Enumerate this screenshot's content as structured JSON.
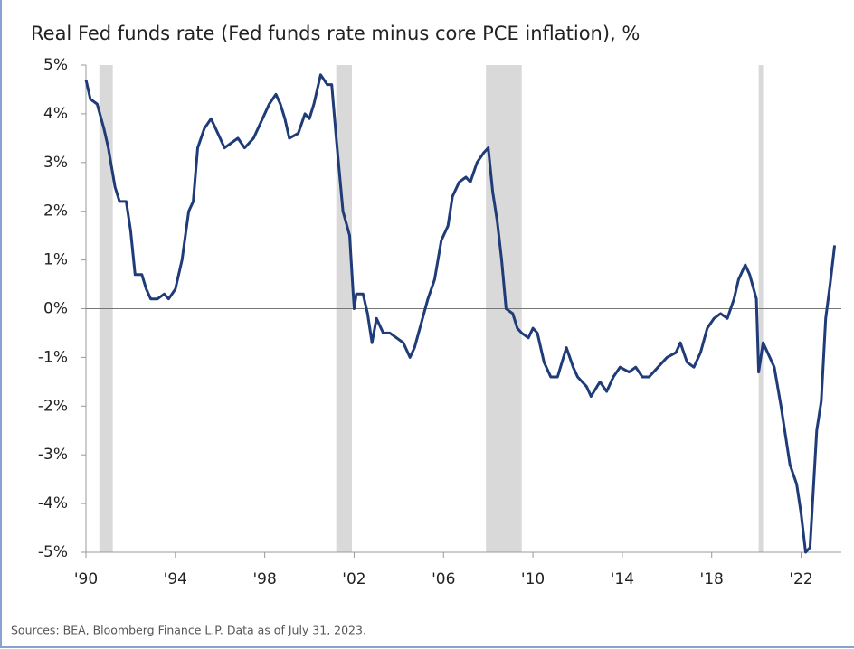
{
  "chart_data": {
    "type": "line",
    "title": "Real Fed funds rate (Fed funds rate minus core PCE inflation), %",
    "source": "Sources: BEA, Bloomberg Finance L.P. Data as of July 31, 2023.",
    "xlim": [
      1990,
      2023.8
    ],
    "ylim": [
      -5,
      5
    ],
    "xticks": [
      {
        "value": 1990,
        "label": "'90"
      },
      {
        "value": 1994,
        "label": "'94"
      },
      {
        "value": 1998,
        "label": "'98"
      },
      {
        "value": 2002,
        "label": "'02"
      },
      {
        "value": 2006,
        "label": "'06"
      },
      {
        "value": 2010,
        "label": "'10"
      },
      {
        "value": 2014,
        "label": "'14"
      },
      {
        "value": 2018,
        "label": "'18"
      },
      {
        "value": 2022,
        "label": "'22"
      }
    ],
    "yticks": [
      {
        "value": 5,
        "label": "5%"
      },
      {
        "value": 4,
        "label": "4%"
      },
      {
        "value": 3,
        "label": "3%"
      },
      {
        "value": 2,
        "label": "2%"
      },
      {
        "value": 1,
        "label": "1%"
      },
      {
        "value": 0,
        "label": "0%"
      },
      {
        "value": -1,
        "label": "-1%"
      },
      {
        "value": -2,
        "label": "-2%"
      },
      {
        "value": -3,
        "label": "-3%"
      },
      {
        "value": -4,
        "label": "-4%"
      },
      {
        "value": -5,
        "label": "-5%"
      }
    ],
    "shaded_regions": [
      [
        1990.6,
        1991.2
      ],
      [
        2001.2,
        2001.9
      ],
      [
        2007.9,
        2009.5
      ],
      [
        2020.1,
        2020.3
      ]
    ],
    "shade_color": "#d9d9d9",
    "series": [
      {
        "color": "#1f3b78",
        "x": [
          1990.0,
          1990.2,
          1990.5,
          1990.8,
          1991.0,
          1991.3,
          1991.5,
          1991.8,
          1992.0,
          1992.2,
          1992.5,
          1992.7,
          1992.9,
          1993.2,
          1993.5,
          1993.7,
          1994.0,
          1994.3,
          1994.6,
          1994.8,
          1995.0,
          1995.3,
          1995.6,
          1995.9,
          1996.2,
          1996.5,
          1996.8,
          1997.1,
          1997.5,
          1997.9,
          1998.2,
          1998.5,
          1998.7,
          1998.9,
          1999.1,
          1999.5,
          1999.8,
          2000.0,
          2000.2,
          2000.5,
          2000.8,
          2001.0,
          2001.2,
          2001.5,
          2001.8,
          2002.0,
          2002.1,
          2002.4,
          2002.6,
          2002.8,
          2003.0,
          2003.3,
          2003.6,
          2003.9,
          2004.2,
          2004.5,
          2004.7,
          2005.0,
          2005.3,
          2005.6,
          2005.9,
          2006.2,
          2006.4,
          2006.7,
          2007.0,
          2007.2,
          2007.5,
          2007.8,
          2008.0,
          2008.2,
          2008.4,
          2008.6,
          2008.8,
          2009.1,
          2009.3,
          2009.5,
          2009.8,
          2010.0,
          2010.2,
          2010.5,
          2010.8,
          2011.1,
          2011.5,
          2011.8,
          2012.0,
          2012.4,
          2012.6,
          2013.0,
          2013.3,
          2013.6,
          2013.9,
          2014.3,
          2014.6,
          2014.9,
          2015.2,
          2015.6,
          2016.0,
          2016.4,
          2016.6,
          2016.9,
          2017.2,
          2017.5,
          2017.8,
          2018.1,
          2018.4,
          2018.7,
          2019.0,
          2019.2,
          2019.5,
          2019.7,
          2020.0,
          2020.1,
          2020.3,
          2020.5,
          2020.8,
          2021.1,
          2021.5,
          2021.8,
          2022.0,
          2022.2,
          2022.4,
          2022.7,
          2022.9,
          2023.1,
          2023.3,
          2023.5
        ],
        "values": [
          4.7,
          4.3,
          4.2,
          3.7,
          3.3,
          2.5,
          2.2,
          2.2,
          1.6,
          0.7,
          0.7,
          0.4,
          0.2,
          0.2,
          0.3,
          0.2,
          0.4,
          1.0,
          2.0,
          2.2,
          3.3,
          3.7,
          3.9,
          3.6,
          3.3,
          3.4,
          3.5,
          3.3,
          3.5,
          3.9,
          4.2,
          4.4,
          4.2,
          3.9,
          3.5,
          3.6,
          4.0,
          3.9,
          4.2,
          4.8,
          4.6,
          4.6,
          3.5,
          2.0,
          1.5,
          0.0,
          0.3,
          0.3,
          -0.1,
          -0.7,
          -0.2,
          -0.5,
          -0.5,
          -0.6,
          -0.7,
          -1.0,
          -0.8,
          -0.3,
          0.2,
          0.6,
          1.4,
          1.7,
          2.3,
          2.6,
          2.7,
          2.6,
          3.0,
          3.2,
          3.3,
          2.4,
          1.8,
          1.0,
          0.0,
          -0.1,
          -0.4,
          -0.5,
          -0.6,
          -0.4,
          -0.5,
          -1.1,
          -1.4,
          -1.4,
          -0.8,
          -1.2,
          -1.4,
          -1.6,
          -1.8,
          -1.5,
          -1.7,
          -1.4,
          -1.2,
          -1.3,
          -1.2,
          -1.4,
          -1.4,
          -1.2,
          -1.0,
          -0.9,
          -0.7,
          -1.1,
          -1.2,
          -0.9,
          -0.4,
          -0.2,
          -0.1,
          -0.2,
          0.2,
          0.6,
          0.9,
          0.7,
          0.2,
          -1.3,
          -0.7,
          -0.9,
          -1.2,
          -2.0,
          -3.2,
          -3.6,
          -4.2,
          -5.0,
          -4.9,
          -2.5,
          -1.9,
          -0.2,
          0.5,
          1.3
        ]
      }
    ]
  }
}
